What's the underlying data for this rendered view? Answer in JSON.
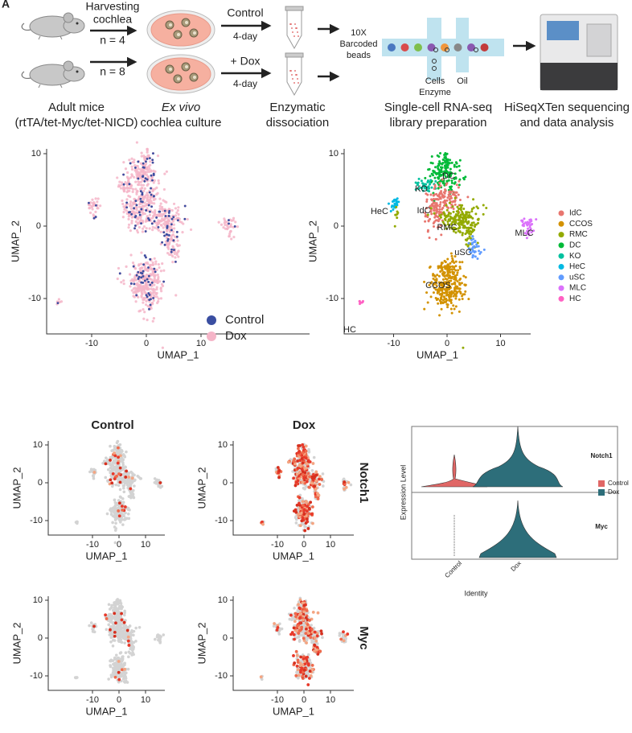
{
  "panel_label": "A",
  "workflow": {
    "harvest": [
      "Harvesting",
      "cochlea"
    ],
    "groups": [
      {
        "n": "n = 4",
        "treatment": "Control",
        "duration": "4-day"
      },
      {
        "n": "n = 8",
        "treatment": "+ Dox",
        "duration": "4-day"
      }
    ],
    "beads": [
      "10X",
      "Barcoded",
      "beads"
    ],
    "channel_labels": {
      "cells": "Cells",
      "enzyme": "Enzyme",
      "oil": "Oil"
    },
    "captions": [
      [
        "Adult mice",
        "(rtTA/tet-Myc/tet-NICD)"
      ],
      [
        "Ex vivo",
        "cochlea culture"
      ],
      [
        "Enzymatic",
        "dissociation"
      ],
      [
        "Single-cell RNA-seq",
        "library preparation"
      ],
      [
        "HiSeqXTen sequencing",
        "and data analysis"
      ]
    ]
  },
  "umap_condition": {
    "xlabel": "UMAP_1",
    "ylabel": "UMAP_2",
    "xticks": [
      -10,
      0,
      10
    ],
    "yticks": [
      10,
      0,
      -10
    ],
    "legend": [
      {
        "name": "Control",
        "color": "#3a4ea1"
      },
      {
        "name": "Dox",
        "color": "#f5b5c8"
      }
    ]
  },
  "umap_clusters": {
    "xlabel": "UMAP_1",
    "ylabel": "UMAP_2",
    "xticks": [
      -10,
      0,
      10
    ],
    "yticks": [
      10,
      0,
      -10
    ],
    "clusters": [
      {
        "name": "IdC",
        "color": "#e8766f"
      },
      {
        "name": "CCOS",
        "color": "#d39200"
      },
      {
        "name": "RMC",
        "color": "#93aa00"
      },
      {
        "name": "DC",
        "color": "#00ba38"
      },
      {
        "name": "KO",
        "color": "#00c19f"
      },
      {
        "name": "HeC",
        "color": "#00b9e3"
      },
      {
        "name": "uSC",
        "color": "#619cff"
      },
      {
        "name": "MLC",
        "color": "#db72fb"
      },
      {
        "name": "HC",
        "color": "#ff61c3"
      }
    ]
  },
  "feature_plots": {
    "columns": [
      "Control",
      "Dox"
    ],
    "genes": [
      "Notch1",
      "Myc"
    ],
    "xlabel": "UMAP_1",
    "ylabel": "UMAP_2",
    "xticks": [
      -10,
      0,
      10
    ],
    "yticks": [
      10,
      0,
      -10
    ]
  },
  "violin": {
    "ylabel": "Expression Level",
    "xlabel": "Identity",
    "categories": [
      "Control",
      "Dox"
    ],
    "genes": [
      "Notch1",
      "Myc"
    ],
    "legend": [
      {
        "name": "Control",
        "color": "#e06766"
      },
      {
        "name": "Dox",
        "color": "#2d6e7a"
      }
    ]
  }
}
